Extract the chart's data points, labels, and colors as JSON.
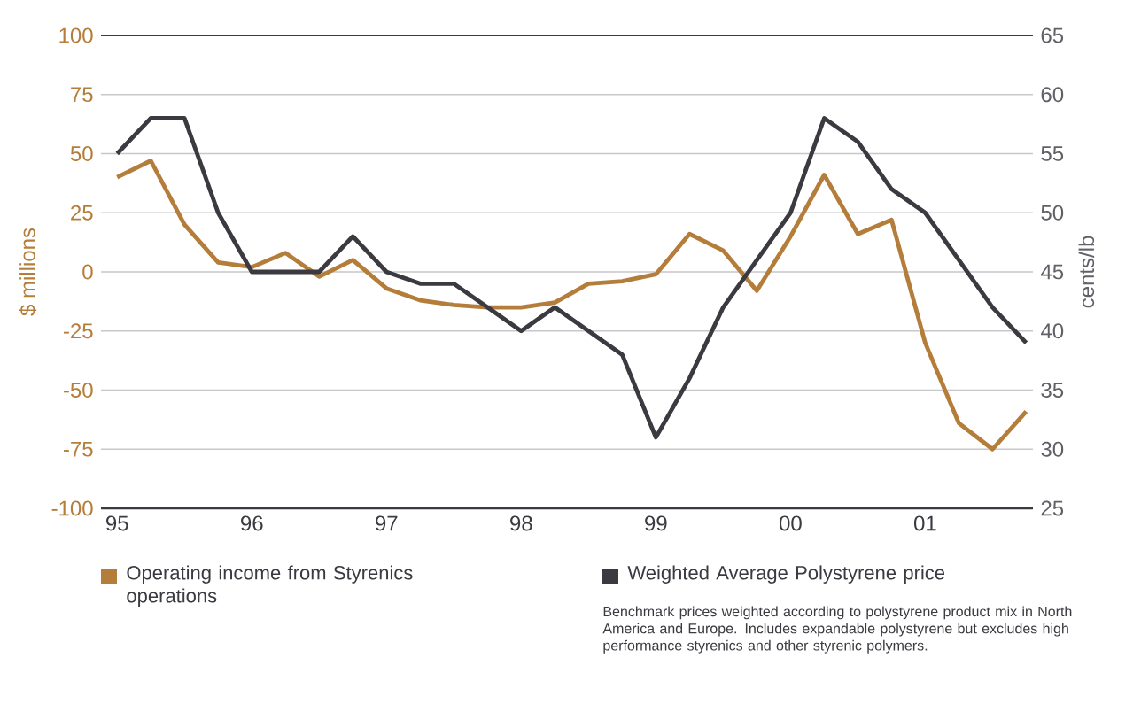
{
  "chart_data": {
    "type": "line",
    "ylabel": "$ millions",
    "y2label": "cents/lb",
    "x": [
      1995,
      1995.25,
      1995.5,
      1995.75,
      1996,
      1996.25,
      1996.5,
      1996.75,
      1997,
      1997.25,
      1997.5,
      1997.75,
      1998,
      1998.25,
      1998.5,
      1998.75,
      1999,
      1999.25,
      1999.5,
      1999.75,
      2000,
      2000.25,
      2000.5,
      2000.75,
      2001,
      2001.25,
      2001.5,
      2001.75
    ],
    "series": [
      {
        "name": "Operating income from Styrenics operations",
        "color": "#b57d3a",
        "values": [
          40,
          47,
          20,
          4,
          2,
          8,
          -2,
          5,
          -7,
          -12,
          -14,
          -15,
          -15,
          -13,
          -5,
          -4,
          -1,
          16,
          9,
          -8,
          15,
          41,
          16,
          22,
          -30,
          -64,
          -75,
          -59
        ]
      },
      {
        "name": "Weighted Average Polystyrene price",
        "color": "#3a3a40",
        "axis": "y2",
        "values": [
          55,
          58,
          58,
          50,
          45,
          45,
          45,
          48,
          45,
          44,
          44,
          42,
          40,
          42,
          40,
          38,
          31,
          36,
          42,
          46,
          50,
          58,
          56,
          52,
          50,
          46,
          42,
          39
        ]
      }
    ],
    "xlim": [
      1994.88,
      2001.8
    ],
    "xticks": [
      {
        "value": 1995,
        "label": "95"
      },
      {
        "value": 1996,
        "label": "96"
      },
      {
        "value": 1997,
        "label": "97"
      },
      {
        "value": 1998,
        "label": "98"
      },
      {
        "value": 1999,
        "label": "99"
      },
      {
        "value": 2000,
        "label": "00"
      },
      {
        "value": 2001,
        "label": "01"
      }
    ],
    "ylim": [
      -100,
      100
    ],
    "yticks": [
      -100,
      -75,
      -50,
      -25,
      0,
      25,
      50,
      75,
      100
    ],
    "y2lim": [
      25,
      65
    ],
    "y2ticks": [
      25,
      30,
      35,
      40,
      45,
      50,
      55,
      60,
      65
    ],
    "grid": "y",
    "legend": "bottom",
    "line_style": "solid",
    "annotations": [
      "Benchmark prices weighted according to polystyrene product mix in North America and Europe. Includes expandable polystyrene but excludes high performance styrenics and other styrenic polymers."
    ]
  }
}
